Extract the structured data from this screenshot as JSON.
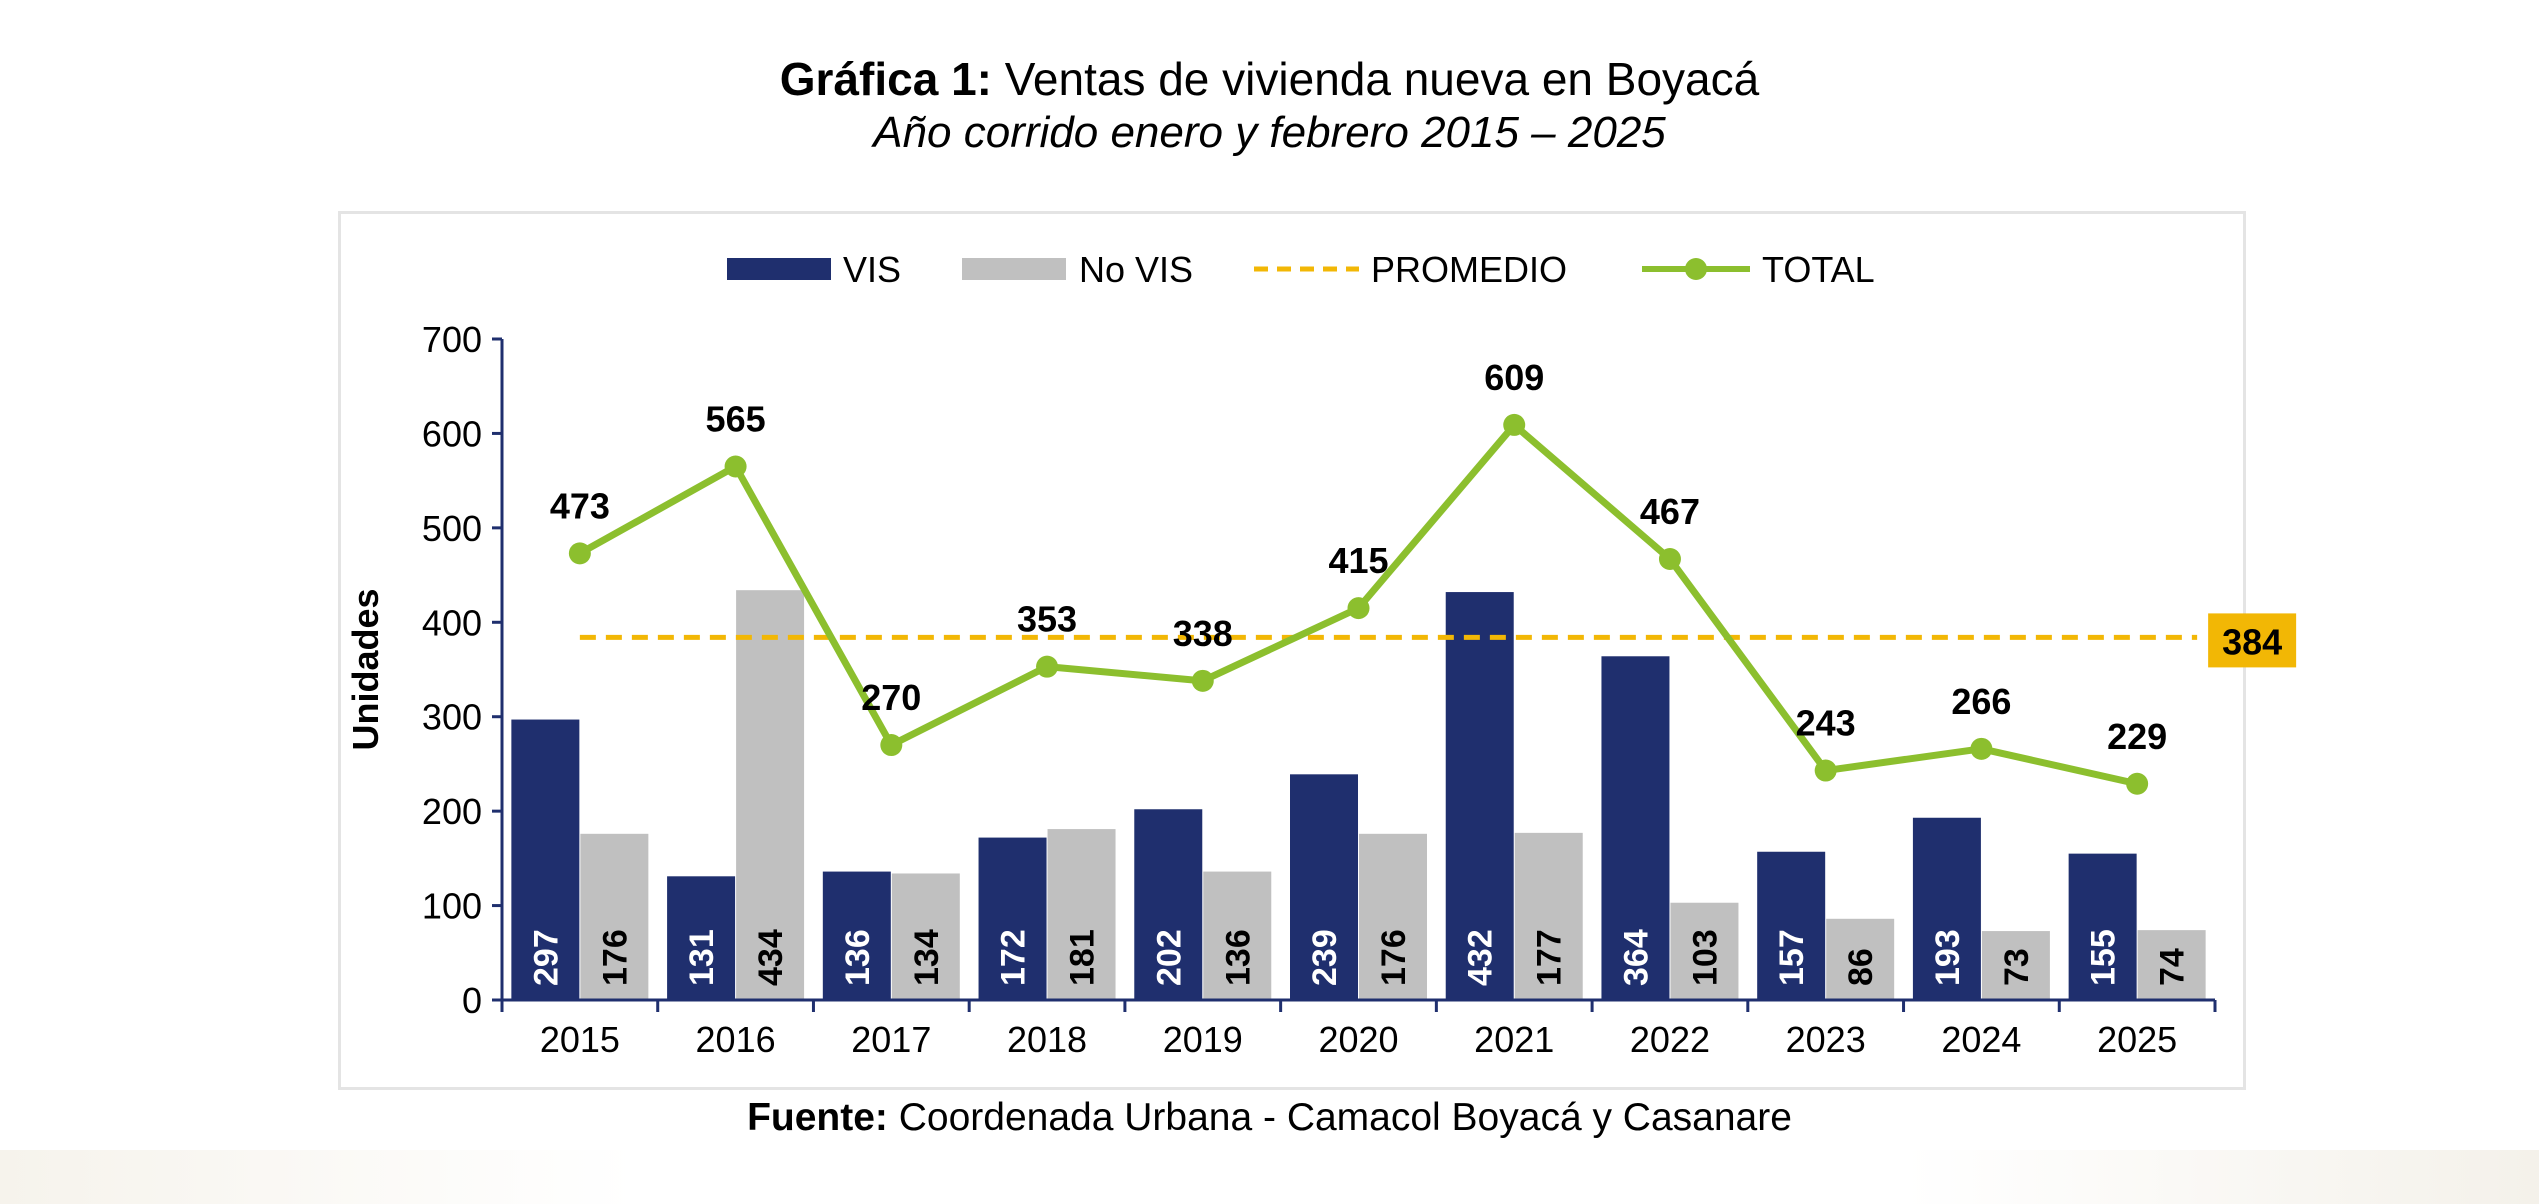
{
  "title": {
    "prefix": "Gráfica 1:",
    "text": "Ventas de vivienda nueva en Boyacá",
    "subtitle": "Año corrido enero y febrero 2015 – 2025"
  },
  "source": {
    "prefix": "Fuente:",
    "text": "Coordenada Urbana - Camacol Boyacá y Casanare"
  },
  "colors": {
    "vis": "#1f2f6e",
    "no_vis": "#c0c0c0",
    "promedio": "#f2b705",
    "total": "#8cbf2e",
    "average_badge": "#f2b705"
  },
  "chart_data": {
    "type": "bar",
    "categories": [
      "2015",
      "2016",
      "2017",
      "2018",
      "2019",
      "2020",
      "2021",
      "2022",
      "2023",
      "2024",
      "2025"
    ],
    "series": [
      {
        "name": "VIS",
        "type": "bar",
        "values": [
          297,
          131,
          136,
          172,
          202,
          239,
          432,
          364,
          157,
          193,
          155
        ]
      },
      {
        "name": "No VIS",
        "type": "bar",
        "values": [
          176,
          434,
          134,
          181,
          136,
          176,
          177,
          103,
          86,
          73,
          74
        ]
      },
      {
        "name": "PROMEDIO",
        "type": "line",
        "style": "dashed",
        "value": 384,
        "values": [
          384,
          384,
          384,
          384,
          384,
          384,
          384,
          384,
          384,
          384,
          384
        ]
      },
      {
        "name": "TOTAL",
        "type": "line",
        "values": [
          473,
          565,
          270,
          353,
          338,
          415,
          609,
          467,
          243,
          266,
          229
        ]
      }
    ],
    "average_label": "384",
    "ylabel": "Unidades",
    "xlabel": "",
    "ylim": [
      0,
      700
    ],
    "yticks": [
      0,
      100,
      200,
      300,
      400,
      500,
      600,
      700
    ],
    "grid": false,
    "legend_position": "top"
  }
}
